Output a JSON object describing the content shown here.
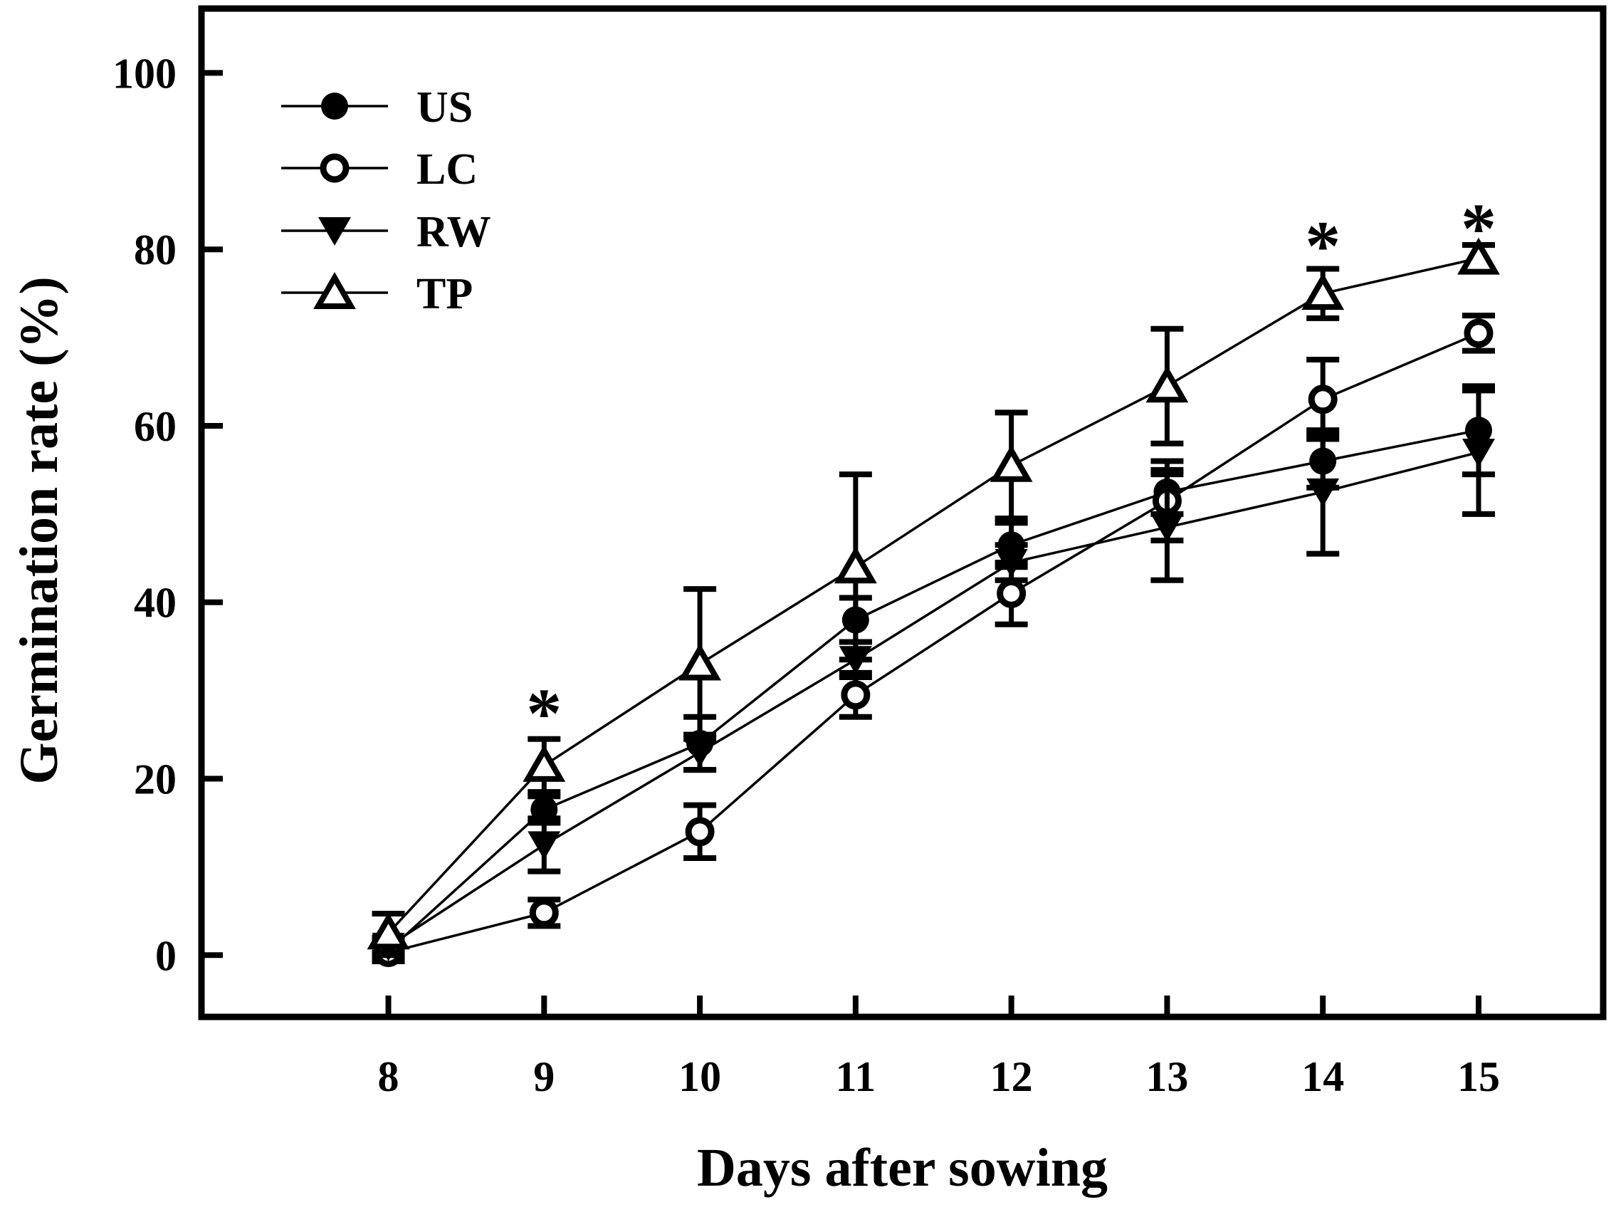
{
  "chart_data": {
    "type": "line",
    "title": "",
    "xlabel": "Days after sowing",
    "ylabel": "Germination rate (%)",
    "x": [
      8,
      9,
      10,
      11,
      12,
      13,
      14,
      15
    ],
    "xlim": [
      6.8,
      15.8
    ],
    "ylim": [
      -7,
      107.3
    ],
    "xticks": [
      8,
      9,
      10,
      11,
      12,
      13,
      14,
      15
    ],
    "yticks": [
      0,
      20,
      40,
      60,
      80,
      100
    ],
    "grid": false,
    "legend_position": "upper-left",
    "colors": {
      "ink": "#000000",
      "background": "#ffffff"
    },
    "series": [
      {
        "name": "US",
        "marker": "filled-circle",
        "values": [
          0.5,
          16.5,
          24,
          38,
          46.5,
          52.5,
          56,
          59.5
        ],
        "errors": [
          1,
          1.5,
          3,
          2.5,
          2.5,
          2.5,
          3,
          5
        ]
      },
      {
        "name": "LC",
        "marker": "open-circle",
        "values": [
          0.3,
          4.8,
          14,
          29.5,
          41,
          51.5,
          63,
          70.5
        ],
        "errors": [
          1,
          1.5,
          3,
          2.5,
          3.5,
          4.5,
          4.5,
          2
        ]
      },
      {
        "name": "RW",
        "marker": "filled-triangle-down",
        "values": [
          1,
          12.5,
          23,
          33.5,
          44.5,
          48.5,
          52.5,
          57
        ],
        "errors": [
          1,
          3,
          2,
          2,
          2,
          6,
          7,
          7
        ]
      },
      {
        "name": "TP",
        "marker": "open-triangle-up",
        "values": [
          2.5,
          21.5,
          33,
          44,
          55.5,
          64.5,
          75,
          79
        ],
        "errors": [
          2.2,
          3,
          8.5,
          10.5,
          6,
          6.5,
          2.8,
          1.5
        ]
      }
    ],
    "annotations": [
      {
        "symbol": "*",
        "x": 9,
        "y": 28.5
      },
      {
        "symbol": "*",
        "x": 14,
        "y": 81.5
      },
      {
        "symbol": "*",
        "x": 15,
        "y": 83.5
      }
    ]
  }
}
